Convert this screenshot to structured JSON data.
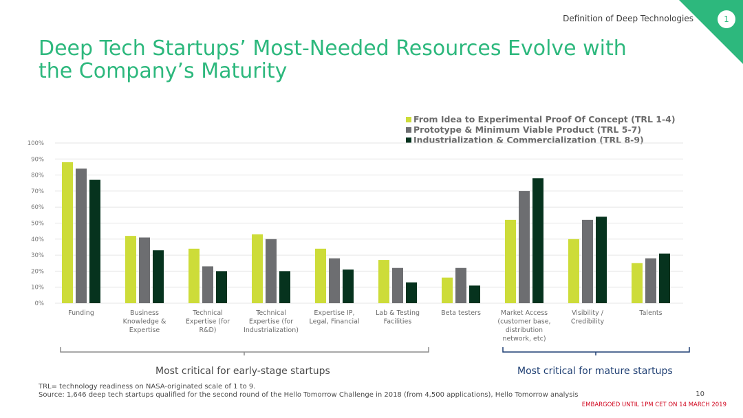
{
  "header": {
    "section": "Definition of Deep Technologies",
    "slide_badge": "1",
    "title": "Deep Tech Startups’ Most-Needed Resources Evolve with the Company’s Maturity"
  },
  "chart_data": {
    "type": "bar",
    "title": "Deep Tech Startups’ Most-Needed Resources Evolve with the Company’s Maturity",
    "xlabel": "",
    "ylabel": "",
    "ylim": [
      0,
      100
    ],
    "yticks": [
      "0%",
      "10%",
      "20%",
      "30%",
      "40%",
      "50%",
      "60%",
      "70%",
      "80%",
      "90%",
      "100%"
    ],
    "grid": true,
    "legend_position": "top-right",
    "categories": [
      [
        "Funding"
      ],
      [
        "Business",
        "Knowledge &",
        "Expertise"
      ],
      [
        "Technical",
        "Expertise (for",
        "R&D)"
      ],
      [
        "Technical",
        "Expertise (for",
        "Industrialization)"
      ],
      [
        "Expertise IP,",
        "Legal, Financial"
      ],
      [
        "Lab & Testing",
        "Facilities"
      ],
      [
        "Beta testers"
      ],
      [
        "Market Access",
        "(customer base,",
        "distribution",
        "network, etc)"
      ],
      [
        "Visibility /",
        "Credibility"
      ],
      [
        "Talents"
      ]
    ],
    "series": [
      {
        "name": "From Idea to Experimental Proof Of Concept (TRL 1-4)",
        "color": "#cddc39",
        "values": [
          88,
          42,
          34,
          43,
          34,
          27,
          16,
          52,
          40,
          25
        ]
      },
      {
        "name": "Prototype & Minimum Viable Product (TRL 5-7)",
        "color": "#6d6e71",
        "values": [
          84,
          41,
          23,
          40,
          28,
          22,
          22,
          70,
          52,
          28
        ]
      },
      {
        "name": "Industrialization & Commercialization (TRL 8-9)",
        "color": "#06331e",
        "values": [
          77,
          33,
          20,
          20,
          21,
          13,
          11,
          78,
          54,
          31
        ]
      }
    ],
    "annotations": [
      {
        "text": "Most critical for early-stage startups",
        "from_category": 0,
        "to_category": 5,
        "color": "#8c8c8c"
      },
      {
        "text": "Most critical for mature startups",
        "from_category": 7,
        "to_category": 9,
        "color": "#1f3f73"
      }
    ]
  },
  "footer": {
    "note1": "TRL= technology readiness on NASA-originated scale of 1 to 9.",
    "note2": "Source: 1,646 deep tech startups qualified for the second round of the Hello Tomorrow Challenge in 2018 (from 4,500 applications), Hello Tomorrow analysis",
    "page_number": "10",
    "embargo": "EMBARGOED UNTIL 1PM CET ON 14 MARCH 2019"
  }
}
